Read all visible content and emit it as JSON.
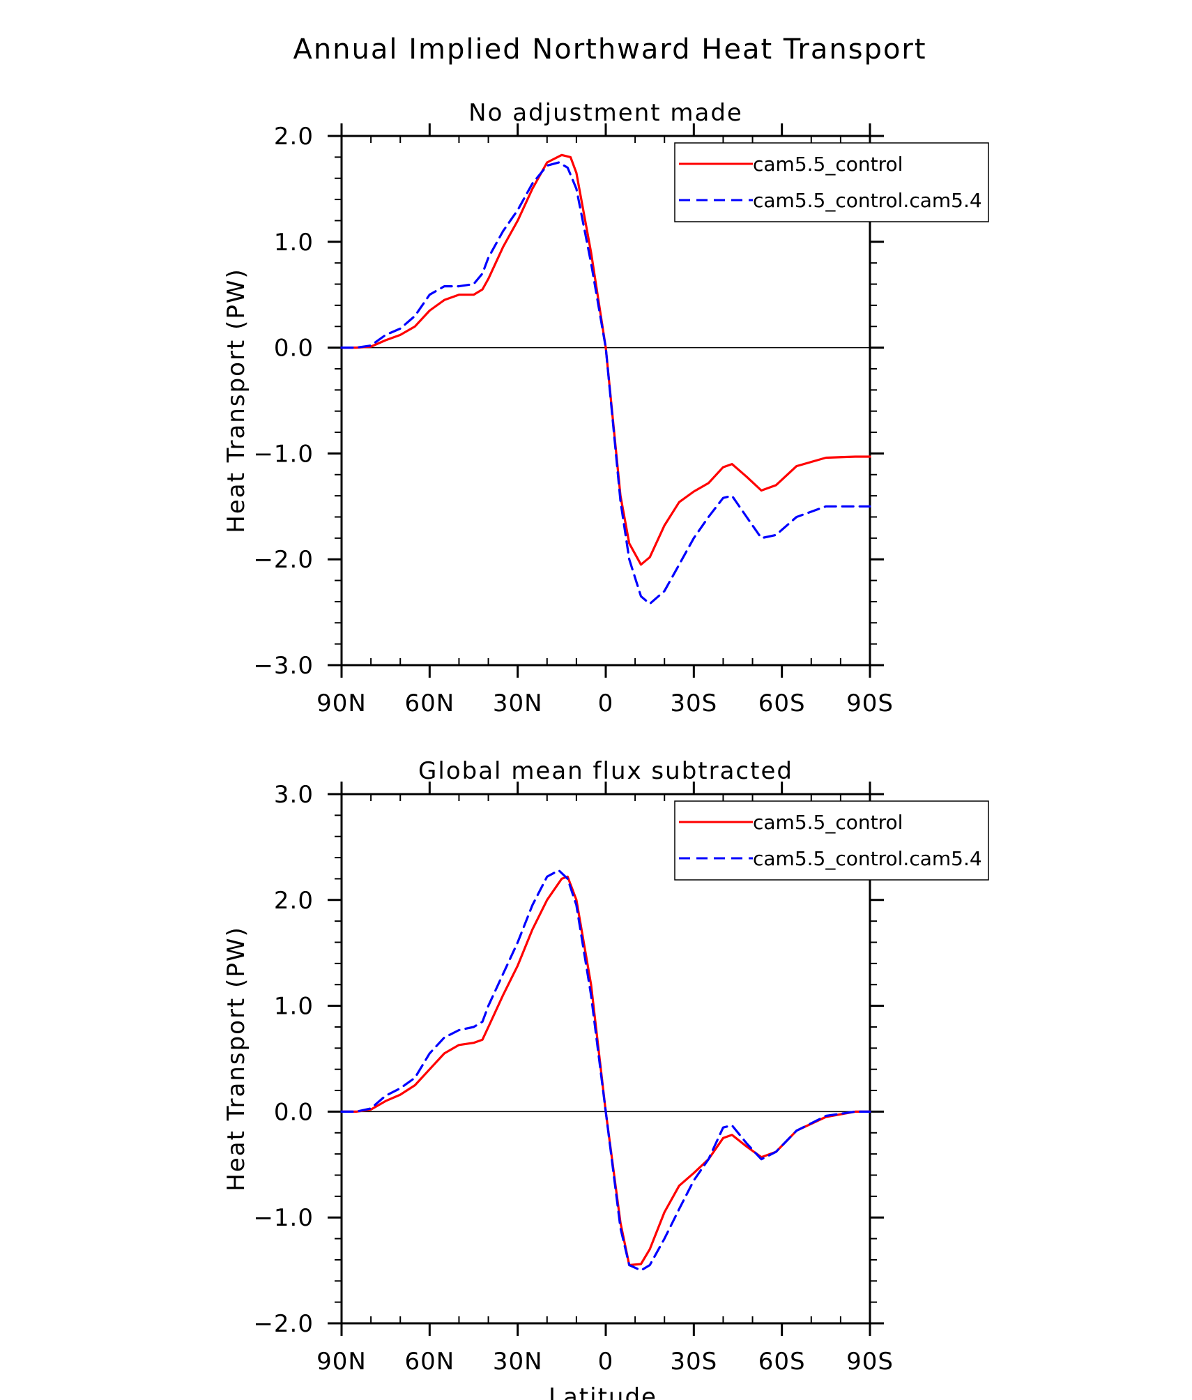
{
  "figure": {
    "title": "Annual Implied Northward Heat Transport",
    "xlabel": "Latitude"
  },
  "colors": {
    "series1": "#ff0000",
    "series2": "#0000ff",
    "axis": "#000000"
  },
  "chart_data": [
    {
      "type": "line",
      "title": "No adjustment made",
      "xlabel": "",
      "ylabel": "Heat Transport (PW)",
      "xlim": [
        90,
        -90
      ],
      "ylim": [
        -3.0,
        2.0
      ],
      "x_ticks": [
        90,
        60,
        30,
        0,
        -30,
        -60,
        -90
      ],
      "x_tick_labels": [
        "90N",
        "60N",
        "30N",
        "0",
        "30S",
        "60S",
        "90S"
      ],
      "y_ticks": [
        2.0,
        1.0,
        0.0,
        -1.0,
        -2.0,
        -3.0
      ],
      "y_tick_labels": [
        "2.0",
        "1.0",
        "0.0",
        "−1.0",
        "−2.0",
        "−3.0"
      ],
      "legend_position": "top-right",
      "series": [
        {
          "name": "cam5.5_control",
          "style": "solid",
          "color": "#ff0000",
          "x": [
            90,
            85,
            80,
            75,
            70,
            65,
            60,
            55,
            50,
            45,
            42,
            40,
            35,
            30,
            25,
            20,
            15,
            12,
            10,
            5,
            0,
            -5,
            -8,
            -12,
            -15,
            -20,
            -25,
            -30,
            -35,
            -40,
            -43,
            -48,
            -53,
            -58,
            -65,
            -75,
            -85,
            -90
          ],
          "y": [
            0.0,
            0.0,
            0.01,
            0.07,
            0.12,
            0.2,
            0.35,
            0.45,
            0.5,
            0.5,
            0.55,
            0.65,
            0.95,
            1.2,
            1.5,
            1.75,
            1.82,
            1.8,
            1.65,
            0.9,
            0.0,
            -1.4,
            -1.85,
            -2.05,
            -1.98,
            -1.68,
            -1.46,
            -1.36,
            -1.28,
            -1.13,
            -1.1,
            -1.22,
            -1.35,
            -1.3,
            -1.12,
            -1.04,
            -1.03,
            -1.03
          ]
        },
        {
          "name": "cam5.5_control.cam5.4",
          "style": "dashed",
          "color": "#0000ff",
          "x": [
            90,
            85,
            80,
            75,
            70,
            65,
            60,
            55,
            50,
            45,
            42,
            40,
            35,
            30,
            25,
            20,
            16,
            13,
            10,
            5,
            0,
            -5,
            -8,
            -12,
            -15,
            -20,
            -25,
            -30,
            -35,
            -40,
            -43,
            -48,
            -53,
            -58,
            -65,
            -75,
            -85,
            -90
          ],
          "y": [
            0.0,
            0.0,
            0.02,
            0.12,
            0.18,
            0.3,
            0.5,
            0.58,
            0.58,
            0.6,
            0.7,
            0.85,
            1.1,
            1.3,
            1.55,
            1.72,
            1.75,
            1.7,
            1.5,
            0.8,
            0.0,
            -1.45,
            -2.0,
            -2.35,
            -2.42,
            -2.3,
            -2.05,
            -1.8,
            -1.6,
            -1.42,
            -1.4,
            -1.6,
            -1.8,
            -1.77,
            -1.6,
            -1.5,
            -1.5,
            -1.5
          ]
        }
      ]
    },
    {
      "type": "line",
      "title": "Global mean flux subtracted",
      "xlabel": "Latitude",
      "ylabel": "Heat Transport (PW)",
      "xlim": [
        90,
        -90
      ],
      "ylim": [
        -2.0,
        3.0
      ],
      "x_ticks": [
        90,
        60,
        30,
        0,
        -30,
        -60,
        -90
      ],
      "x_tick_labels": [
        "90N",
        "60N",
        "30N",
        "0",
        "30S",
        "60S",
        "90S"
      ],
      "y_ticks": [
        3.0,
        2.0,
        1.0,
        0.0,
        -1.0,
        -2.0
      ],
      "y_tick_labels": [
        "3.0",
        "2.0",
        "1.0",
        "0.0",
        "−1.0",
        "−2.0"
      ],
      "legend_position": "top-right",
      "series": [
        {
          "name": "cam5.5_control",
          "style": "solid",
          "color": "#ff0000",
          "x": [
            90,
            85,
            80,
            75,
            70,
            65,
            60,
            55,
            50,
            45,
            42,
            40,
            35,
            30,
            25,
            20,
            15,
            13,
            10,
            5,
            0,
            -5,
            -8,
            -12,
            -15,
            -20,
            -25,
            -30,
            -35,
            -40,
            -43,
            -48,
            -53,
            -58,
            -65,
            -75,
            -85,
            -90
          ],
          "y": [
            0.0,
            0.0,
            0.02,
            0.1,
            0.16,
            0.25,
            0.4,
            0.55,
            0.63,
            0.65,
            0.68,
            0.8,
            1.1,
            1.38,
            1.72,
            2.0,
            2.2,
            2.22,
            2.0,
            1.2,
            0.0,
            -1.05,
            -1.45,
            -1.44,
            -1.3,
            -0.95,
            -0.7,
            -0.58,
            -0.45,
            -0.25,
            -0.22,
            -0.33,
            -0.43,
            -0.38,
            -0.18,
            -0.05,
            0.0,
            0.0
          ]
        },
        {
          "name": "cam5.5_control.cam5.4",
          "style": "dashed",
          "color": "#0000ff",
          "x": [
            90,
            85,
            80,
            75,
            70,
            65,
            60,
            55,
            50,
            45,
            42,
            40,
            35,
            30,
            25,
            20,
            16,
            13,
            10,
            5,
            0,
            -5,
            -8,
            -12,
            -15,
            -20,
            -25,
            -30,
            -35,
            -40,
            -43,
            -48,
            -53,
            -58,
            -65,
            -75,
            -85,
            -90
          ],
          "y": [
            0.0,
            0.0,
            0.03,
            0.15,
            0.22,
            0.32,
            0.55,
            0.7,
            0.77,
            0.8,
            0.85,
            1.0,
            1.3,
            1.6,
            1.95,
            2.22,
            2.28,
            2.2,
            1.95,
            1.1,
            0.0,
            -1.1,
            -1.45,
            -1.5,
            -1.45,
            -1.2,
            -0.92,
            -0.65,
            -0.45,
            -0.15,
            -0.13,
            -0.3,
            -0.45,
            -0.38,
            -0.18,
            -0.04,
            0.0,
            0.0
          ]
        }
      ]
    }
  ]
}
